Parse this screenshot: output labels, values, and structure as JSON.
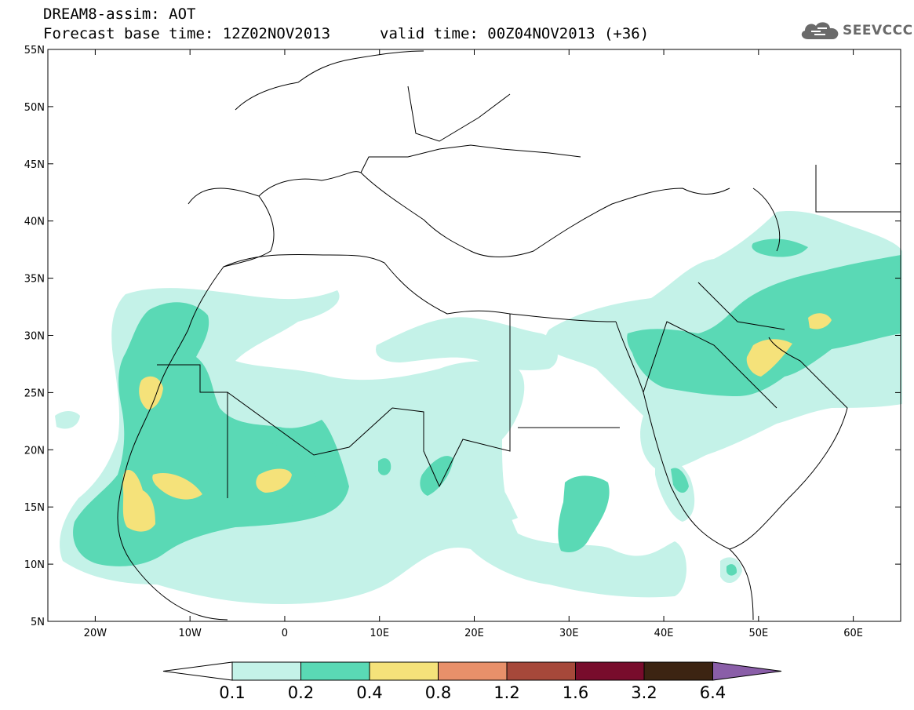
{
  "header": {
    "model_title": "DREAM8-assim: AOT",
    "base_time": "Forecast base time: 12Z02NOV2013",
    "valid_time": "valid time: 00Z04NOV2013 (+36)",
    "logo_text": "SEEVCCC",
    "logo_icon": "cloud-icon"
  },
  "map": {
    "lon_range": [
      -25,
      65
    ],
    "lat_range": [
      5,
      55
    ],
    "lat_ticks": [
      {
        "value": 55,
        "label": "55N"
      },
      {
        "value": 50,
        "label": "50N"
      },
      {
        "value": 45,
        "label": "45N"
      },
      {
        "value": 40,
        "label": "40N"
      },
      {
        "value": 35,
        "label": "35N"
      },
      {
        "value": 30,
        "label": "30N"
      },
      {
        "value": 25,
        "label": "25N"
      },
      {
        "value": 20,
        "label": "20N"
      },
      {
        "value": 15,
        "label": "15N"
      },
      {
        "value": 10,
        "label": "10N"
      },
      {
        "value": 5,
        "label": "5N"
      }
    ],
    "lon_ticks": [
      {
        "value": -20,
        "label": "20W"
      },
      {
        "value": -10,
        "label": "10W"
      },
      {
        "value": 0,
        "label": "0"
      },
      {
        "value": 10,
        "label": "10E"
      },
      {
        "value": 20,
        "label": "20E"
      },
      {
        "value": 30,
        "label": "30E"
      },
      {
        "value": 40,
        "label": "40E"
      },
      {
        "value": 50,
        "label": "50E"
      },
      {
        "value": 60,
        "label": "60E"
      }
    ]
  },
  "colorbar": {
    "labels": [
      "0.1",
      "0.2",
      "0.4",
      "0.8",
      "1.2",
      "1.6",
      "3.2",
      "6.4"
    ],
    "under_color": "#ffffff",
    "colors": [
      "#c4f2e8",
      "#5ad9b5",
      "#f5e27a",
      "#e8906a",
      "#a6483a",
      "#780c2c",
      "#3c2412"
    ],
    "over_color": "#8a5ea8"
  }
}
